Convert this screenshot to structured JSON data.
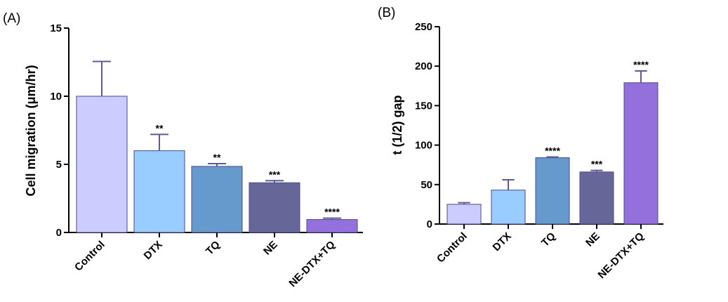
{
  "chart_data": [
    {
      "panel": "(A)",
      "type": "bar",
      "ylabel": "Cell migration (μm/hr)",
      "ylim": [
        0,
        15
      ],
      "yticks": [
        "0",
        "5",
        "10",
        "15"
      ],
      "categories": [
        "Control",
        "DTX",
        "TQ",
        "NE",
        "NE-DTX+TQ"
      ],
      "values": [
        10.0,
        6.0,
        4.85,
        3.65,
        0.95
      ],
      "errors": [
        2.55,
        1.2,
        0.2,
        0.15,
        0.1
      ],
      "significance": [
        "",
        "**",
        "**",
        "***",
        "****"
      ],
      "colors": [
        "#ccccff",
        "#99ccff",
        "#6699cc",
        "#666699",
        "#9370db"
      ],
      "error_color": "#5b5b99"
    },
    {
      "panel": "(B)",
      "type": "bar",
      "ylabel": "t (1/2) gap",
      "ylim": [
        0,
        250
      ],
      "yticks": [
        "0",
        "50",
        "100",
        "150",
        "200",
        "250"
      ],
      "categories": [
        "Control",
        "DTX",
        "TQ",
        "NE",
        "NE-DTX+TQ"
      ],
      "values": [
        25,
        43,
        84,
        66,
        179
      ],
      "errors": [
        2,
        13,
        1,
        2,
        15
      ],
      "significance": [
        "",
        "",
        "****",
        "***",
        "****"
      ],
      "colors": [
        "#ccccff",
        "#99ccff",
        "#6699cc",
        "#666699",
        "#9370db"
      ],
      "error_color": "#5b5b99"
    }
  ]
}
